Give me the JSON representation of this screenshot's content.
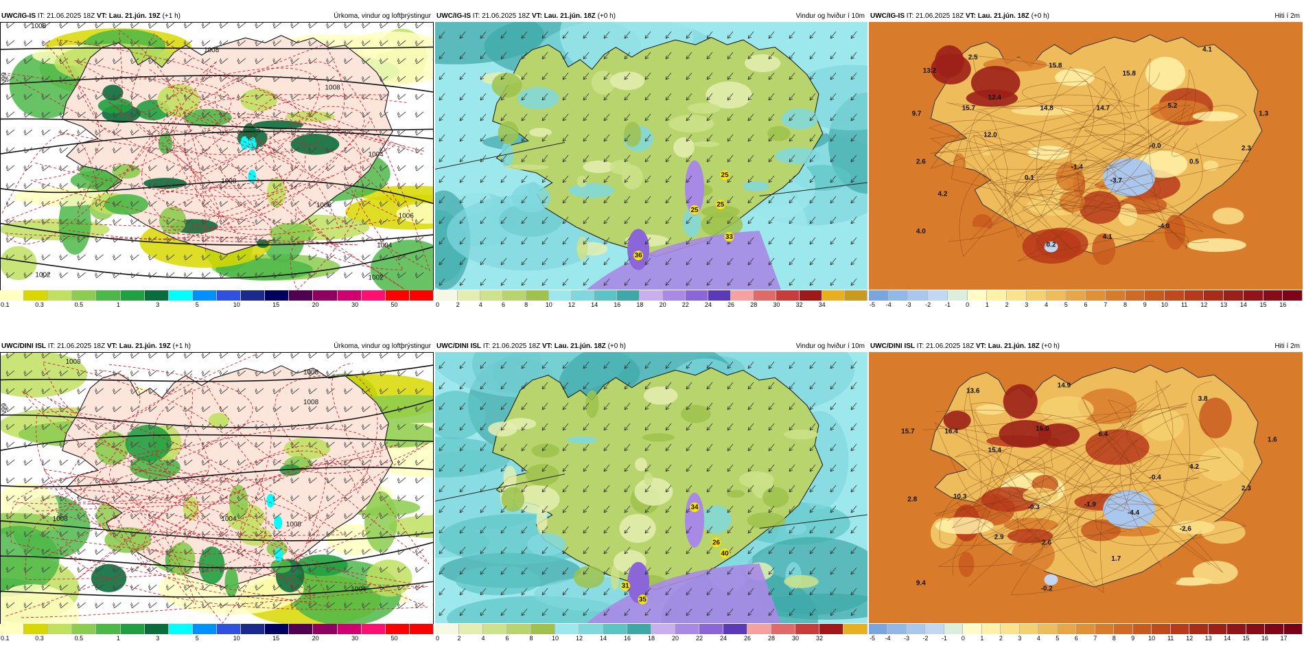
{
  "panels": [
    {
      "id": "p1",
      "model": "UWC/IG-IS",
      "it": "IT: 21.06.2025 18Z",
      "vt_label": "VT:",
      "vt": "Lau. 21.jún. 19Z",
      "lead": "(+1 h)",
      "field": "Úrkoma, vindur og loftþrýstingur",
      "kind": "precip",
      "colorbar": {
        "colors": [
          "#ffffc0",
          "#d8d800",
          "#c0e060",
          "#8ccc50",
          "#4cb848",
          "#20a040",
          "#0a6e3c",
          "#00ffff",
          "#0090ff",
          "#3050e0",
          "#1c2a90",
          "#000060",
          "#500050",
          "#900060",
          "#d00070",
          "#ff1070",
          "#ff0000",
          "#ff0000"
        ],
        "labels": [
          "0.1",
          "0.3",
          "0.5",
          "1",
          "3",
          "5",
          "10",
          "15",
          "20",
          "30",
          "50"
        ]
      },
      "isobar_labels": [
        "1008",
        "1008",
        "1008",
        "1004",
        "1006",
        "1004",
        "1002",
        "1002",
        "1008",
        "1006"
      ],
      "lat_label": "N99"
    },
    {
      "id": "p2",
      "model": "UWC/IG-IS",
      "it": "IT: 21.06.2025 18Z",
      "vt_label": "VT:",
      "vt": "Lau. 21.jún. 18Z",
      "lead": "(+0 h)",
      "field": "Vindur og hviður í 10m",
      "kind": "wind",
      "colorbar": {
        "colors": [
          "#f6f8e4",
          "#e4eeb0",
          "#cde28a",
          "#b8d46c",
          "#9ec24c",
          "#9de8ec",
          "#80d8de",
          "#5cc4c4",
          "#3ea8a8",
          "#c8b0f0",
          "#a88ae6",
          "#8a66d8",
          "#5a3ab8",
          "#f6a0a0",
          "#e06a6a",
          "#c83c3c",
          "#a01818",
          "#e8b020",
          "#c89a20"
        ],
        "labels": [
          "0",
          "2",
          "4",
          "6",
          "8",
          "10",
          "12",
          "14",
          "16",
          "18",
          "20",
          "22",
          "24",
          "26",
          "28",
          "30",
          "32",
          "34"
        ]
      },
      "values": [
        "25",
        "25",
        "25",
        "33",
        "36"
      ]
    },
    {
      "id": "p3",
      "model": "UWC/IG-IS",
      "it": "IT: 21.06.2025 18Z",
      "vt_label": "VT:",
      "vt": "Lau. 21.jún. 18Z",
      "lead": "(+0 h)",
      "field": "Hiti í 2m",
      "kind": "temp",
      "colorbar": {
        "colors": [
          "#7aa6e0",
          "#92b8e8",
          "#aac8ee",
          "#c2d8f2",
          "#dceedc",
          "#fffcc8",
          "#fff2a8",
          "#fbe28c",
          "#f5d070",
          "#efbc5c",
          "#e8a648",
          "#e19038",
          "#d87c2c",
          "#d06a24",
          "#c85a1e",
          "#c04a1c",
          "#b83a1a",
          "#a82c18",
          "#9c2018",
          "#901418",
          "#880c18",
          "#800418"
        ],
        "labels": [
          "-5",
          "-4",
          "-3",
          "-2",
          "-1",
          "0",
          "1",
          "2",
          "3",
          "4",
          "5",
          "6",
          "7",
          "8",
          "9",
          "10",
          "11",
          "12",
          "13",
          "14",
          "15",
          "16"
        ]
      },
      "values": [
        "2.5",
        "4.1",
        "13.2",
        "15.8",
        "15.8",
        "12.4",
        "9.7",
        "15.7",
        "14.8",
        "14.7",
        "5.2",
        "1.3",
        "12.0",
        "-0.0",
        "2.3",
        "2.6",
        "0.1",
        "-1.4",
        "0.5",
        "-3.7",
        "4.2",
        "4.0",
        "4.1",
        "-4.0",
        "0.2"
      ]
    },
    {
      "id": "p4",
      "model": "UWC/DINI ISL",
      "it": "IT: 21.06.2025 18Z",
      "vt_label": "VT:",
      "vt": "Lau. 21.jún. 19Z",
      "lead": "(+1 h)",
      "field": "Úrkoma, vindur og loftþrýstingur",
      "kind": "precip",
      "colorbar": {
        "colors": [
          "#ffffc0",
          "#d8d800",
          "#c0e060",
          "#8ccc50",
          "#4cb848",
          "#20a040",
          "#0a6e3c",
          "#00ffff",
          "#0090ff",
          "#3050e0",
          "#1c2a90",
          "#000060",
          "#500050",
          "#900060",
          "#d00070",
          "#ff1070",
          "#ff0000",
          "#ff0000"
        ],
        "labels": [
          "0.1",
          "0.3",
          "0.5",
          "1",
          "3",
          "5",
          "10",
          "15",
          "20",
          "30",
          "50"
        ]
      },
      "isobar_labels": [
        "1008",
        "1008",
        "1008",
        "1004",
        "1008",
        "1008",
        "1004"
      ],
      "lat_label": "N99"
    },
    {
      "id": "p5",
      "model": "UWC/DINI ISL",
      "it": "IT: 21.06.2025 18Z",
      "vt_label": "VT:",
      "vt": "Lau. 21.jún. 18Z",
      "lead": "(+0 h)",
      "field": "Vindur og hviður í 10m",
      "kind": "wind",
      "colorbar": {
        "colors": [
          "#f6f8e4",
          "#e4eeb0",
          "#cde28a",
          "#b8d46c",
          "#9ec24c",
          "#9de8ec",
          "#80d8de",
          "#5cc4c4",
          "#3ea8a8",
          "#c8b0f0",
          "#a88ae6",
          "#8a66d8",
          "#5a3ab8",
          "#f6a0a0",
          "#e06a6a",
          "#c83c3c",
          "#a01818",
          "#e8b020"
        ],
        "labels": [
          "0",
          "2",
          "4",
          "6",
          "8",
          "10",
          "12",
          "14",
          "16",
          "18",
          "20",
          "22",
          "24",
          "26",
          "28",
          "30",
          "32"
        ]
      },
      "values": [
        "34",
        "26",
        "40",
        "31",
        "35"
      ]
    },
    {
      "id": "p6",
      "model": "UWC/DINI ISL",
      "it": "IT: 21.06.2025 18Z",
      "vt_label": "VT:",
      "vt": "Lau. 21.jún. 18Z",
      "lead": "(+0 h)",
      "field": "Hiti í 2m",
      "kind": "temp",
      "colorbar": {
        "colors": [
          "#7aa6e0",
          "#92b8e8",
          "#aac8ee",
          "#c2d8f2",
          "#dceedc",
          "#fffcc8",
          "#fff2a8",
          "#fbe28c",
          "#f5d070",
          "#efbc5c",
          "#e8a648",
          "#e19038",
          "#d87c2c",
          "#d06a24",
          "#c85a1e",
          "#c04a1c",
          "#b83a1a",
          "#a82c18",
          "#9c2018",
          "#901418",
          "#880c18",
          "#800418",
          "#780018"
        ],
        "labels": [
          "-5",
          "-4",
          "-3",
          "-2",
          "-1",
          "0",
          "1",
          "2",
          "3",
          "4",
          "5",
          "6",
          "7",
          "8",
          "9",
          "10",
          "11",
          "12",
          "13",
          "14",
          "15",
          "16",
          "17"
        ]
      },
      "values": [
        "13.6",
        "14.9",
        "3.8",
        "15.7",
        "16.4",
        "16.0",
        "6.4",
        "1.6",
        "15.4",
        "4.2",
        "-0.4",
        "2.3",
        "2.8",
        "10.3",
        "-0.3",
        "-1.9",
        "-4.4",
        "-2.6",
        "2.9",
        "2.6",
        "1.7",
        "9.4",
        "-0.2"
      ]
    }
  ]
}
